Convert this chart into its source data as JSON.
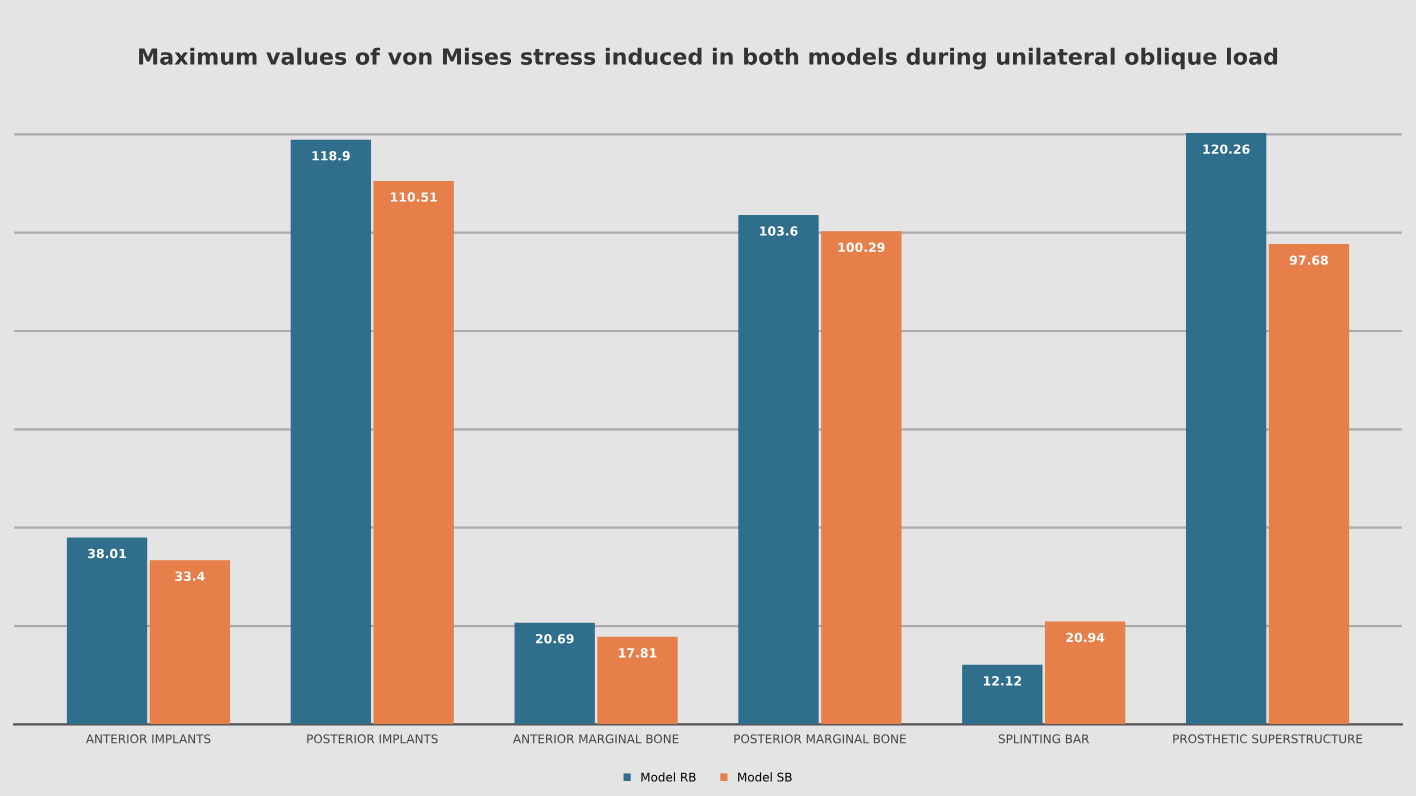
{
  "chart_data": {
    "type": "bar",
    "title": "Maximum values of von Mises stress induced in both models during unilateral oblique load",
    "categories": [
      "ANTERIOR IMPLANTS",
      "POSTERIOR IMPLANTS",
      "ANTERIOR MARGINAL BONE",
      "POSTERIOR MARGINAL BONE",
      "SPLINTING BAR",
      "PROSTHETIC SUPERSTRUCTURE"
    ],
    "series": [
      {
        "name": "Model RB",
        "color": "#2f6e8c",
        "values": [
          38.01,
          118.9,
          20.69,
          103.6,
          12.12,
          120.26
        ]
      },
      {
        "name": "Model SB",
        "color": "#e67f49",
        "values": [
          33.4,
          110.51,
          17.81,
          100.29,
          20.94,
          97.68
        ]
      }
    ],
    "yticks": [
      {
        "value": 0,
        "label": null
      },
      {
        "value": 20,
        "label": null
      },
      {
        "value": 40,
        "label": null
      },
      {
        "value": 60,
        "label": null
      },
      {
        "value": 80,
        "label": null
      },
      {
        "value": 100,
        "label": null
      },
      {
        "value": 120,
        "label": null
      }
    ],
    "tick_labels": "x",
    "grid": "y",
    "legend": "bottom",
    "data_labels": true
  }
}
